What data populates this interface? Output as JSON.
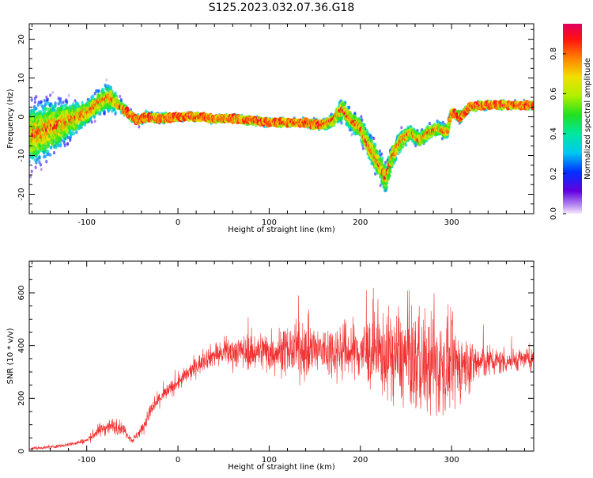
{
  "title": "S125.2023.032.07.36.G18",
  "chart_data": [
    {
      "type": "heatmap",
      "xlabel": "Height of straight line (km)",
      "ylabel": "Frequency (Hz)",
      "xlim": [
        -163,
        390
      ],
      "ylim": [
        -25,
        24
      ],
      "x_ticks": [
        -100,
        0,
        100,
        200,
        300
      ],
      "y_ticks": [
        -20,
        -10,
        0,
        10,
        20
      ],
      "grid": false,
      "colorbar": {
        "label": "Normalized spectral amplitude",
        "range": [
          0,
          0.95
        ],
        "ticks": [
          0.0,
          0.2,
          0.4,
          0.6,
          0.8
        ]
      },
      "ridge": {
        "x": [
          -163,
          -140,
          -120,
          -100,
          -85,
          -75,
          -65,
          -55,
          -45,
          -35,
          -20,
          0,
          20,
          40,
          60,
          80,
          100,
          120,
          140,
          150,
          160,
          170,
          180,
          190,
          200,
          210,
          220,
          228,
          235,
          245,
          255,
          265,
          275,
          285,
          295,
          300,
          310,
          320,
          340,
          360,
          380,
          390
        ],
        "y": [
          -5,
          -3,
          -1,
          1,
          4,
          5,
          3,
          1,
          -1,
          0,
          -0.5,
          0,
          0,
          -0.5,
          -0.5,
          -1,
          -1.5,
          -1.5,
          -1.5,
          -2,
          -2,
          -1,
          2,
          -1,
          -3,
          -8,
          -12,
          -16,
          -10,
          -6,
          -4,
          -6,
          -4,
          -3,
          -4,
          1,
          0,
          2.5,
          3,
          3,
          3,
          3
        ],
        "spread": [
          14,
          12,
          8,
          5,
          5,
          6,
          3,
          2,
          2,
          2,
          2,
          1.5,
          1.5,
          1.5,
          1.5,
          1.5,
          1.5,
          1.5,
          1.5,
          2,
          2,
          3,
          5,
          4,
          5,
          6,
          6,
          6,
          5,
          4,
          3,
          3,
          3,
          3,
          3,
          2,
          2,
          1.5,
          1.5,
          1.5,
          1.5,
          1.5
        ]
      }
    },
    {
      "type": "line",
      "xlabel": "Height of straight line (km)",
      "ylabel": "SNR (10 * v/v)",
      "xlim": [
        -163,
        390
      ],
      "ylim": [
        0,
        720
      ],
      "x_ticks": [
        -100,
        0,
        100,
        200,
        300
      ],
      "y_ticks": [
        0,
        200,
        400,
        600
      ],
      "grid": false,
      "color": "#f03030",
      "series": [
        {
          "x": [
            -163,
            -140,
            -120,
            -100,
            -90,
            -80,
            -70,
            -60,
            -50,
            -40,
            -30,
            -20,
            -10,
            0,
            10,
            20,
            30,
            40,
            50,
            60,
            70,
            80,
            90,
            100,
            120,
            140,
            160,
            180,
            200,
            220,
            240,
            260,
            280,
            300,
            320,
            340,
            360,
            380,
            390
          ],
          "y": [
            10,
            15,
            25,
            40,
            70,
            90,
            95,
            85,
            40,
            80,
            150,
            200,
            230,
            260,
            290,
            320,
            350,
            365,
            370,
            375,
            380,
            375,
            380,
            380,
            380,
            385,
            380,
            380,
            380,
            370,
            360,
            340,
            320,
            320,
            330,
            340,
            340,
            350,
            345
          ],
          "amplitude": [
            8,
            8,
            10,
            15,
            30,
            40,
            40,
            30,
            15,
            30,
            40,
            40,
            40,
            40,
            45,
            50,
            50,
            60,
            60,
            80,
            80,
            90,
            100,
            110,
            120,
            140,
            130,
            140,
            160,
            200,
            230,
            250,
            260,
            220,
            130,
            80,
            60,
            50,
            45
          ]
        }
      ]
    }
  ]
}
